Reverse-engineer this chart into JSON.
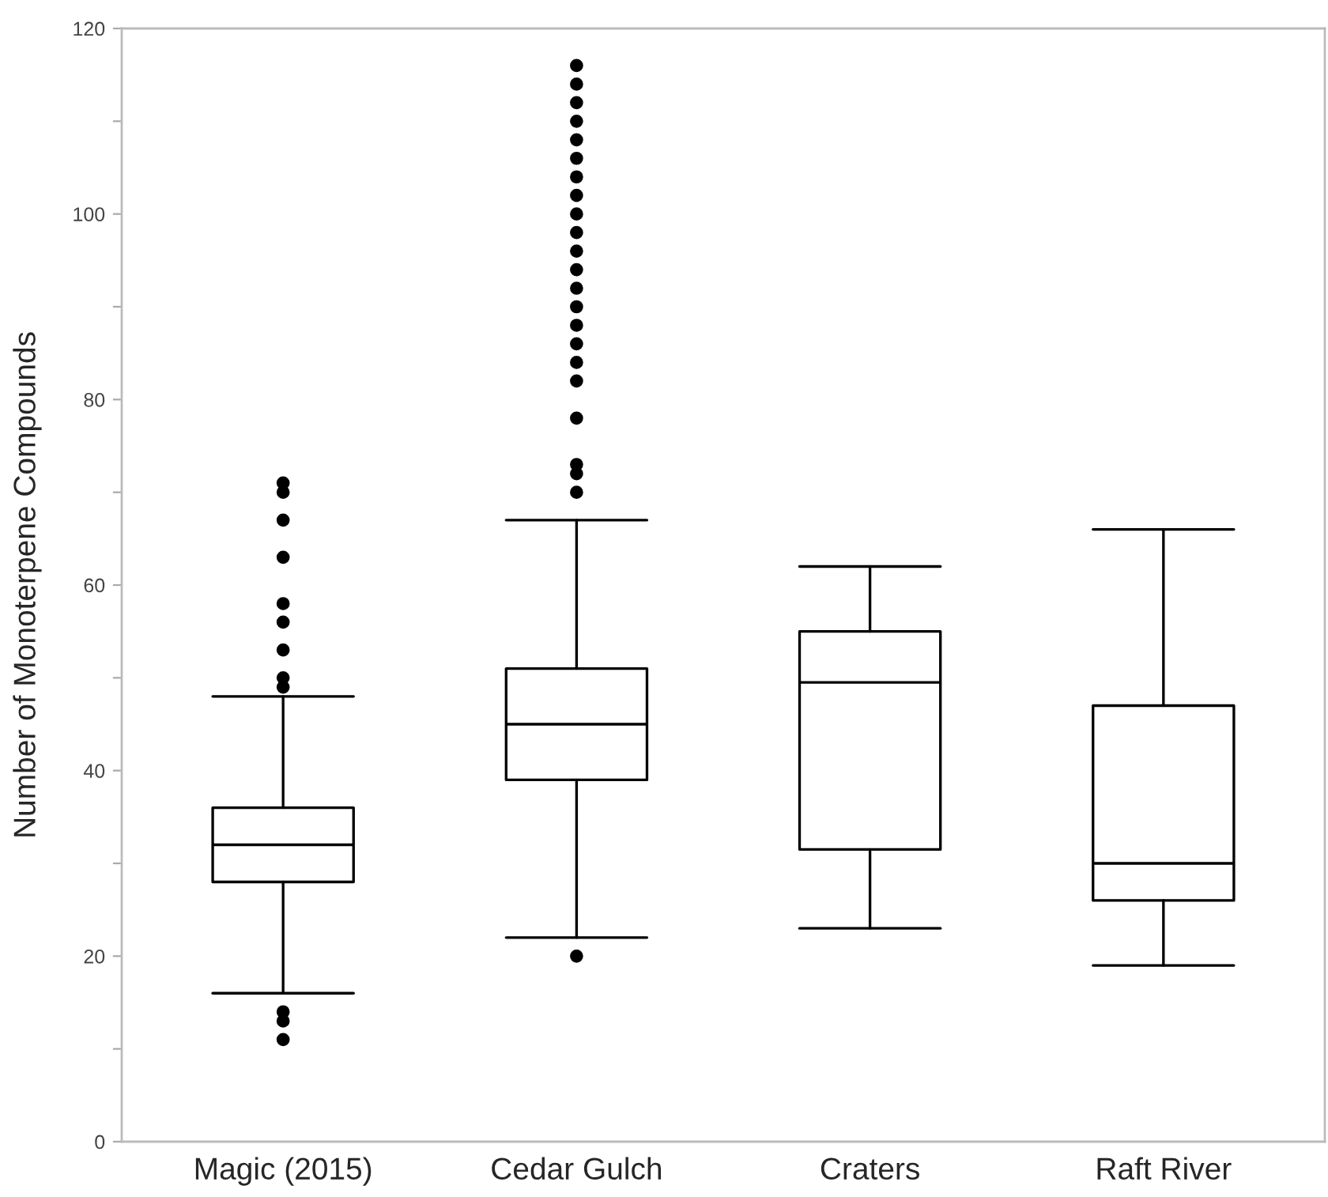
{
  "chart_data": {
    "type": "box",
    "ylabel": "Number of Monoterpene Compounds",
    "categories": [
      "Magic (2015)",
      "Cedar Gulch",
      "Craters",
      "Raft River"
    ],
    "boxes": [
      {
        "low": 16,
        "q1": 28,
        "median": 32,
        "q3": 36,
        "high": 48,
        "outliers": [
          71,
          70,
          67,
          63,
          58,
          56,
          53,
          50,
          49,
          14,
          13,
          11
        ]
      },
      {
        "low": 22,
        "q1": 39,
        "median": 45,
        "q3": 51,
        "high": 67,
        "outliers": [
          116,
          114,
          112,
          110,
          108,
          106,
          104,
          102,
          100,
          98,
          96,
          94,
          92,
          90,
          88,
          86,
          84,
          82,
          78,
          73,
          72,
          70,
          20
        ]
      },
      {
        "low": 23,
        "q1": 31.5,
        "median": 49.5,
        "q3": 55,
        "high": 62
      },
      {
        "low": 19,
        "q1": 26,
        "median": 30,
        "q3": 47,
        "high": 66
      }
    ],
    "color": "#000000",
    "ylim": [
      0,
      120
    ],
    "yticks": [
      0,
      {
        "value": 10,
        "label": null
      },
      20,
      {
        "value": 30,
        "label": null
      },
      40,
      {
        "value": 50,
        "label": null
      },
      60,
      {
        "value": 70,
        "label": null
      },
      80,
      {
        "value": 90,
        "label": null
      },
      100,
      {
        "value": 110,
        "label": null
      },
      120
    ],
    "grid": false
  }
}
